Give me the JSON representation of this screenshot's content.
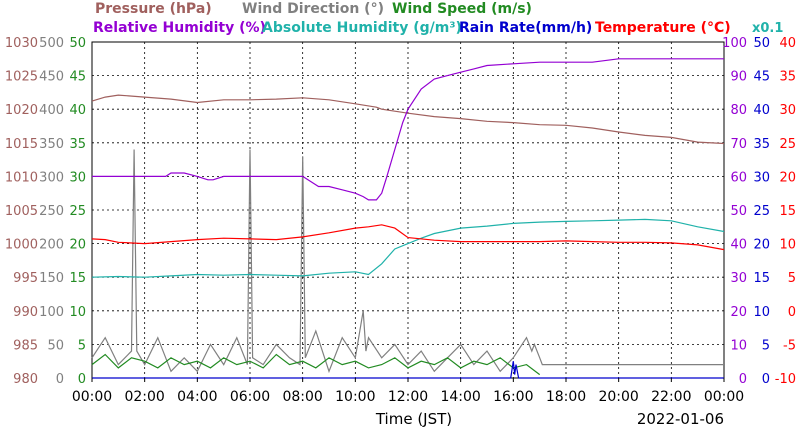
{
  "chart_data": {
    "type": "line",
    "legend": {
      "row1": [
        {
          "key": "pressure",
          "text": "Pressure (hPa)",
          "color": "#a0605e"
        },
        {
          "key": "wind_direction",
          "text": "Wind Direction (°)",
          "color": "#808080"
        },
        {
          "key": "wind_speed",
          "text": "Wind Speed (m/s)",
          "color": "#228b22"
        }
      ],
      "row2": [
        {
          "key": "relative_humidity",
          "text": "Relative Humidity (%)",
          "color": "#9400d3"
        },
        {
          "key": "absolute_humidity",
          "text": "Absolute Humidity (g/m³)",
          "color": "#20b2aa"
        },
        {
          "key": "rain_rate",
          "text": "Rain Rate(mm/h)",
          "color": "#0000cd"
        },
        {
          "key": "temperature",
          "text": "Temperature (°C)",
          "color": "#ff0000"
        }
      ],
      "multiplier_note": "x0.1"
    },
    "xlabel": "Time (JST)",
    "date": "2022-01-06",
    "x_ticks": [
      "00:00",
      "02:00",
      "04:00",
      "06:00",
      "08:00",
      "10:00",
      "12:00",
      "14:00",
      "16:00",
      "18:00",
      "20:00",
      "22:00",
      "00:00"
    ],
    "x_range_hours": [
      0,
      24
    ],
    "grid": true,
    "axes": {
      "pressure": {
        "ticks": [
          "980",
          "985",
          "990",
          "995",
          "1000",
          "1005",
          "1010",
          "1015",
          "1020",
          "1025",
          "1030"
        ],
        "range": [
          980,
          1030
        ],
        "color": "#a0605e"
      },
      "wind_direction": {
        "ticks": [
          "0",
          "50",
          "100",
          "150",
          "200",
          "250",
          "300",
          "350",
          "400",
          "450",
          "500"
        ],
        "range": [
          0,
          500
        ],
        "color": "#808080"
      },
      "wind_speed": {
        "ticks": [
          "0",
          "5",
          "10",
          "15",
          "20",
          "25",
          "30",
          "35",
          "40",
          "45",
          "50"
        ],
        "range": [
          0,
          50
        ],
        "color": "#228b22"
      },
      "relative_humidity": {
        "ticks": [
          "0",
          "10",
          "20",
          "30",
          "40",
          "50",
          "60",
          "70",
          "80",
          "90",
          "100"
        ],
        "range": [
          0,
          100
        ],
        "color": "#9400d3"
      },
      "rain_rate": {
        "ticks": [
          "0",
          "5",
          "10",
          "15",
          "20",
          "25",
          "30",
          "35",
          "40",
          "45",
          "50"
        ],
        "range": [
          0,
          50
        ],
        "color": "#0000cd"
      },
      "temperature": {
        "ticks": [
          "-10",
          "-5",
          "0",
          "5",
          "10",
          "15",
          "20",
          "25",
          "30",
          "35",
          "40"
        ],
        "range": [
          -10,
          40
        ],
        "color": "#ff0000"
      }
    },
    "series": [
      {
        "name": "Pressure (hPa)",
        "axis": "pressure",
        "color": "#a0605e",
        "x": [
          0,
          0.5,
          1,
          2,
          3,
          4,
          5,
          6,
          7,
          8,
          9,
          10,
          10.8,
          11,
          12,
          13,
          14,
          15,
          16,
          17,
          18,
          19,
          20,
          21,
          22,
          23,
          24
        ],
        "y": [
          1021.2,
          1021.8,
          1022.1,
          1021.8,
          1021.5,
          1021.0,
          1021.4,
          1021.4,
          1021.5,
          1021.7,
          1021.4,
          1020.8,
          1020.3,
          1020.0,
          1019.4,
          1018.9,
          1018.6,
          1018.2,
          1018.0,
          1017.7,
          1017.6,
          1017.2,
          1016.6,
          1016.1,
          1015.8,
          1015.1,
          1014.9
        ]
      },
      {
        "name": "Wind Direction (°)",
        "axis": "wind_direction",
        "color": "#808080",
        "x": [
          0,
          0.5,
          1.0,
          1.5,
          1.6,
          1.7,
          2.0,
          2.5,
          3.0,
          3.5,
          4.0,
          4.5,
          5.0,
          5.5,
          5.9,
          6.0,
          6.1,
          6.5,
          7.0,
          7.5,
          7.9,
          8.0,
          8.1,
          8.5,
          9.0,
          9.5,
          10.0,
          10.3,
          10.4,
          10.5,
          11.0,
          11.5,
          12.0,
          12.5,
          13.0,
          13.5,
          14.0,
          14.5,
          15.0,
          15.5,
          16.0,
          16.5,
          16.7,
          16.8,
          17.0,
          17.1,
          18.0,
          20.0,
          22.0,
          24.0
        ],
        "y": [
          30,
          60,
          20,
          40,
          340,
          40,
          20,
          60,
          10,
          30,
          10,
          50,
          20,
          60,
          20,
          340,
          30,
          20,
          50,
          30,
          20,
          330,
          30,
          70,
          10,
          60,
          30,
          100,
          40,
          60,
          30,
          50,
          20,
          40,
          10,
          30,
          50,
          20,
          40,
          10,
          30,
          60,
          40,
          50,
          30,
          20,
          20,
          20,
          20,
          20
        ]
      },
      {
        "name": "Wind Speed (m/s)",
        "axis": "wind_speed",
        "color": "#228b22",
        "x": [
          0,
          0.5,
          1,
          1.5,
          2,
          2.5,
          3,
          3.5,
          4,
          4.5,
          5,
          5.5,
          6,
          6.5,
          7,
          7.5,
          8,
          8.5,
          9,
          9.5,
          10,
          10.5,
          11,
          11.5,
          12,
          12.5,
          13,
          13.5,
          14,
          14.5,
          15,
          15.5,
          16,
          16.5,
          17
        ],
        "y": [
          2.0,
          3.5,
          1.5,
          3.0,
          2.5,
          1.5,
          3.0,
          2.0,
          2.5,
          1.5,
          3.0,
          2.0,
          2.5,
          1.5,
          3.5,
          2.0,
          2.5,
          1.5,
          3.0,
          2.0,
          2.5,
          1.5,
          2.0,
          3.0,
          1.5,
          2.5,
          2.0,
          3.0,
          1.5,
          2.5,
          2.0,
          3.0,
          1.5,
          2.0,
          0.5
        ]
      },
      {
        "name": "Relative Humidity (%)",
        "axis": "relative_humidity",
        "color": "#9400d3",
        "x": [
          0,
          1,
          2,
          2.8,
          3,
          3.5,
          4,
          4.4,
          4.6,
          5,
          5.5,
          6,
          6.5,
          7,
          7.5,
          8,
          8.4,
          8.6,
          9,
          9.5,
          10,
          10.3,
          10.5,
          10.8,
          11.0,
          11.2,
          11.5,
          11.8,
          12.0,
          12.5,
          13.0,
          13.5,
          14.0,
          14.5,
          15.0,
          16.0,
          17.0,
          18.0,
          19.0,
          20.0,
          22.0,
          24.0
        ],
        "y": [
          60,
          60,
          60,
          60,
          61,
          61,
          60,
          59,
          59,
          60,
          60,
          60,
          60,
          60,
          60,
          60,
          58,
          57,
          57,
          56,
          55,
          54,
          53,
          53,
          55,
          60,
          68,
          76,
          80,
          86,
          89,
          90,
          91,
          92,
          93,
          93.5,
          94,
          94,
          94,
          95,
          95,
          95
        ]
      },
      {
        "name": "Absolute Humidity (g/m³)",
        "axis": "wind_speed",
        "color": "#20b2aa",
        "x": [
          0,
          1,
          2,
          3,
          4,
          5,
          6,
          7,
          8,
          9,
          10,
          10.5,
          11.0,
          11.5,
          12.0,
          12.5,
          13.0,
          14.0,
          15.0,
          16.0,
          17.0,
          18.0,
          19.0,
          20.0,
          21.0,
          22.0,
          23.0,
          24.0
        ],
        "y": [
          15.0,
          15.1,
          15.0,
          15.2,
          15.4,
          15.3,
          15.4,
          15.3,
          15.2,
          15.6,
          15.8,
          15.4,
          17.0,
          19.2,
          20.0,
          20.8,
          21.5,
          22.3,
          22.6,
          23.0,
          23.2,
          23.3,
          23.4,
          23.5,
          23.6,
          23.4,
          22.5,
          21.8
        ]
      },
      {
        "name": "Rain Rate(mm/h)",
        "axis": "rain_rate",
        "color": "#0000cd",
        "x": [
          0,
          15.9,
          16.0,
          16.05,
          16.1,
          16.2,
          24
        ],
        "y": [
          0,
          0,
          2.5,
          0.5,
          2.0,
          0,
          0
        ]
      },
      {
        "name": "Temperature (°C)",
        "axis": "temperature",
        "color": "#ff0000",
        "x": [
          0,
          0.5,
          1,
          2,
          3,
          4,
          5,
          6,
          7,
          8,
          9,
          10,
          10.5,
          11.0,
          11.5,
          12.0,
          13.0,
          14.0,
          15.0,
          16.0,
          17.0,
          18.0,
          19.0,
          20.0,
          21.0,
          22.0,
          23.0,
          24.0
        ],
        "y": [
          10.7,
          10.6,
          10.2,
          10.0,
          10.3,
          10.6,
          10.8,
          10.7,
          10.6,
          11.0,
          11.6,
          12.3,
          12.5,
          12.8,
          12.3,
          10.9,
          10.5,
          10.3,
          10.3,
          10.3,
          10.3,
          10.4,
          10.3,
          10.2,
          10.2,
          10.1,
          9.8,
          9.1
        ]
      }
    ]
  }
}
